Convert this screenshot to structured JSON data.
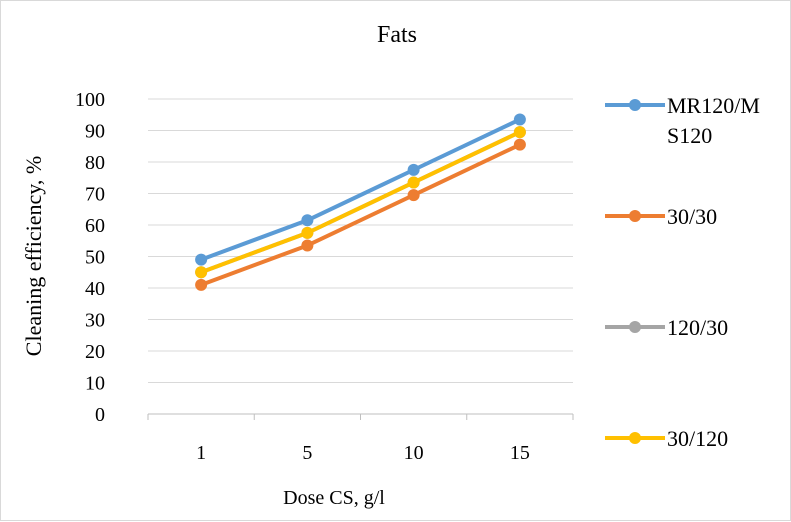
{
  "chart_data": {
    "type": "line",
    "title": "Fats",
    "xlabel": "Dose CS, g/l",
    "ylabel": "Cleaning efficiency, %",
    "categories": [
      "1",
      "5",
      "10",
      "15"
    ],
    "ylim": [
      0,
      100
    ],
    "yticks": [
      "0",
      "10",
      "20",
      "30",
      "40",
      "50",
      "60",
      "70",
      "80",
      "90",
      "100"
    ],
    "grid": true,
    "legend_position": "right",
    "series": [
      {
        "name": "MR120/MS120",
        "name_lines": [
          "MR120/M",
          "S120"
        ],
        "color": "#5b9bd5",
        "values": [
          49,
          61.5,
          77.5,
          93.5
        ]
      },
      {
        "name": "30/30",
        "name_lines": [
          "30/30"
        ],
        "color": "#ed7d31",
        "values": [
          41,
          53.5,
          69.5,
          85.5
        ]
      },
      {
        "name": "120/30",
        "name_lines": [
          "120/30"
        ],
        "color": "#a5a5a5",
        "values": [
          45,
          57.5,
          73.5,
          89.5
        ]
      },
      {
        "name": "30/120",
        "name_lines": [
          "30/120"
        ],
        "color": "#ffc000",
        "values": [
          45,
          57.5,
          73.5,
          89.5
        ]
      }
    ]
  }
}
